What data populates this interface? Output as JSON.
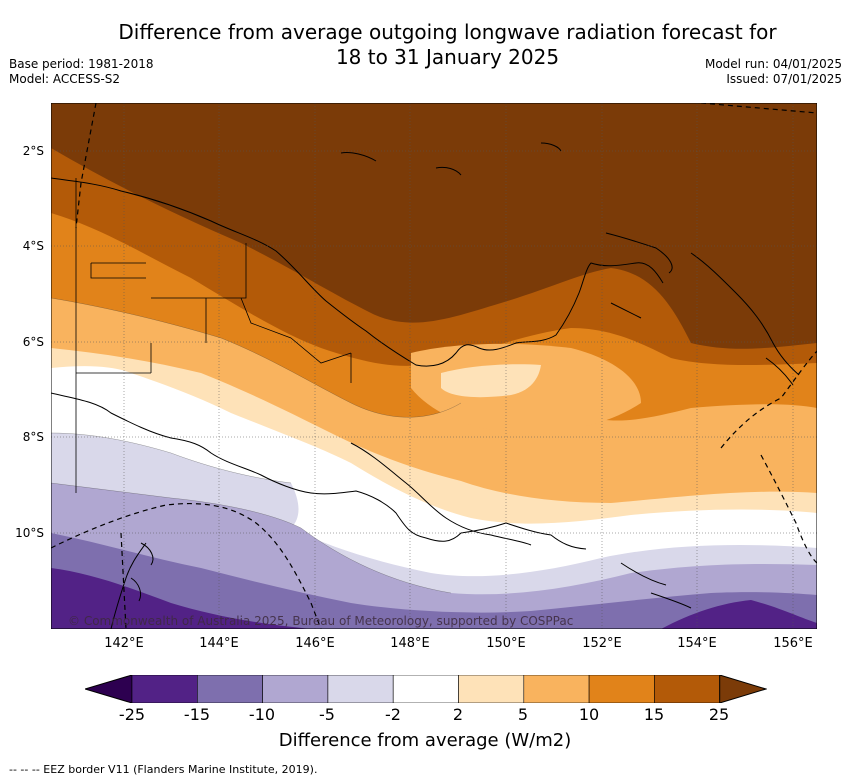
{
  "title_line1": "Difference from average outgoing longwave radiation forecast for",
  "title_line2": "18 to 31 January 2025",
  "meta_left": [
    "Base period: 1981-2018",
    "Model: ACCESS-S2"
  ],
  "meta_right": [
    "Model run: 04/01/2025",
    "Issued: 07/01/2025"
  ],
  "lat_labels": [
    "2°S",
    "4°S",
    "6°S",
    "8°S",
    "10°S"
  ],
  "lon_labels": [
    "142°E",
    "144°E",
    "146°E",
    "148°E",
    "150°E",
    "152°E",
    "154°E",
    "156°E"
  ],
  "copyright": "© Commonwealth of Australia 2025, Bureau of Meteorology, supported by COSPPac",
  "colorbar": {
    "ticks": [
      "-25",
      "-15",
      "-10",
      "-5",
      "-2",
      "2",
      "5",
      "10",
      "15",
      "25"
    ],
    "colors": [
      "#522286",
      "#7e6fae",
      "#b0a7d1",
      "#d9d8ea",
      "#ffffff",
      "#fee2b8",
      "#f9b35e",
      "#e1831a",
      "#b35a08",
      "#7b3b08"
    ],
    "under_color": "#2d0050",
    "over_color": "#7b3b08",
    "label": "Difference from average (W/m2)"
  },
  "footnote": "-- -- -- EEZ border V11 (Flanders Marine Institute, 2019)."
}
